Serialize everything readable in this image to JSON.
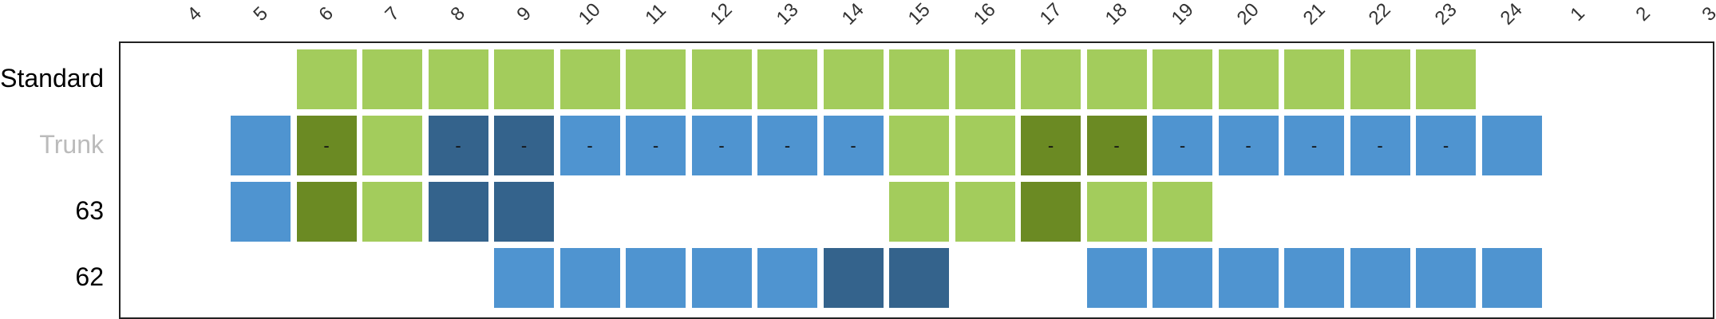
{
  "columns": [
    "4",
    "5",
    "6",
    "7",
    "8",
    "9",
    "10",
    "11",
    "12",
    "13",
    "14",
    "15",
    "16",
    "17",
    "18",
    "19",
    "20",
    "21",
    "22",
    "23",
    "24",
    "1",
    "2",
    "3"
  ],
  "legend_colors": {
    "light_green": "#a3cc5c",
    "dark_green": "#6b8a23",
    "light_blue": "#4f94d0",
    "dark_blue": "#34638c"
  },
  "rows": [
    {
      "label": "Standard",
      "label_color": "#000000",
      "cells": [
        null,
        null,
        {
          "state": "light_green",
          "text": ""
        },
        {
          "state": "light_green",
          "text": ""
        },
        {
          "state": "light_green",
          "text": ""
        },
        {
          "state": "light_green",
          "text": ""
        },
        {
          "state": "light_green",
          "text": ""
        },
        {
          "state": "light_green",
          "text": ""
        },
        {
          "state": "light_green",
          "text": ""
        },
        {
          "state": "light_green",
          "text": ""
        },
        {
          "state": "light_green",
          "text": ""
        },
        {
          "state": "light_green",
          "text": ""
        },
        {
          "state": "light_green",
          "text": ""
        },
        {
          "state": "light_green",
          "text": ""
        },
        {
          "state": "light_green",
          "text": ""
        },
        {
          "state": "light_green",
          "text": ""
        },
        {
          "state": "light_green",
          "text": ""
        },
        {
          "state": "light_green",
          "text": ""
        },
        {
          "state": "light_green",
          "text": ""
        },
        {
          "state": "light_green",
          "text": ""
        },
        null,
        null,
        null,
        null
      ]
    },
    {
      "label": "Trunk",
      "label_color": "#bbbbbb",
      "cells": [
        null,
        {
          "state": "light_blue",
          "text": ""
        },
        {
          "state": "dark_green",
          "text": "-"
        },
        {
          "state": "light_green",
          "text": ""
        },
        {
          "state": "dark_blue",
          "text": "-"
        },
        {
          "state": "dark_blue",
          "text": "-"
        },
        {
          "state": "light_blue",
          "text": "-"
        },
        {
          "state": "light_blue",
          "text": "-"
        },
        {
          "state": "light_blue",
          "text": "-"
        },
        {
          "state": "light_blue",
          "text": "-"
        },
        {
          "state": "light_blue",
          "text": "-"
        },
        {
          "state": "light_green",
          "text": ""
        },
        {
          "state": "light_green",
          "text": ""
        },
        {
          "state": "dark_green",
          "text": "-"
        },
        {
          "state": "dark_green",
          "text": "-"
        },
        {
          "state": "light_blue",
          "text": "-"
        },
        {
          "state": "light_blue",
          "text": "-"
        },
        {
          "state": "light_blue",
          "text": "-"
        },
        {
          "state": "light_blue",
          "text": "-"
        },
        {
          "state": "light_blue",
          "text": "-"
        },
        {
          "state": "light_blue",
          "text": ""
        },
        null,
        null,
        null
      ]
    },
    {
      "label": "63",
      "label_color": "#000000",
      "cells": [
        null,
        {
          "state": "light_blue",
          "text": ""
        },
        {
          "state": "dark_green",
          "text": ""
        },
        {
          "state": "light_green",
          "text": ""
        },
        {
          "state": "dark_blue",
          "text": ""
        },
        {
          "state": "dark_blue",
          "text": ""
        },
        null,
        null,
        null,
        null,
        null,
        {
          "state": "light_green",
          "text": ""
        },
        {
          "state": "light_green",
          "text": ""
        },
        {
          "state": "dark_green",
          "text": ""
        },
        {
          "state": "light_green",
          "text": ""
        },
        {
          "state": "light_green",
          "text": ""
        },
        null,
        null,
        null,
        null,
        null,
        null,
        null,
        null
      ]
    },
    {
      "label": "62",
      "label_color": "#000000",
      "cells": [
        null,
        null,
        null,
        null,
        null,
        {
          "state": "light_blue",
          "text": ""
        },
        {
          "state": "light_blue",
          "text": ""
        },
        {
          "state": "light_blue",
          "text": ""
        },
        {
          "state": "light_blue",
          "text": ""
        },
        {
          "state": "light_blue",
          "text": ""
        },
        {
          "state": "dark_blue",
          "text": ""
        },
        {
          "state": "dark_blue",
          "text": ""
        },
        null,
        null,
        {
          "state": "light_blue",
          "text": ""
        },
        {
          "state": "light_blue",
          "text": ""
        },
        {
          "state": "light_blue",
          "text": ""
        },
        {
          "state": "light_blue",
          "text": ""
        },
        {
          "state": "light_blue",
          "text": ""
        },
        {
          "state": "light_blue",
          "text": ""
        },
        {
          "state": "light_blue",
          "text": ""
        },
        null,
        null,
        null
      ]
    }
  ]
}
